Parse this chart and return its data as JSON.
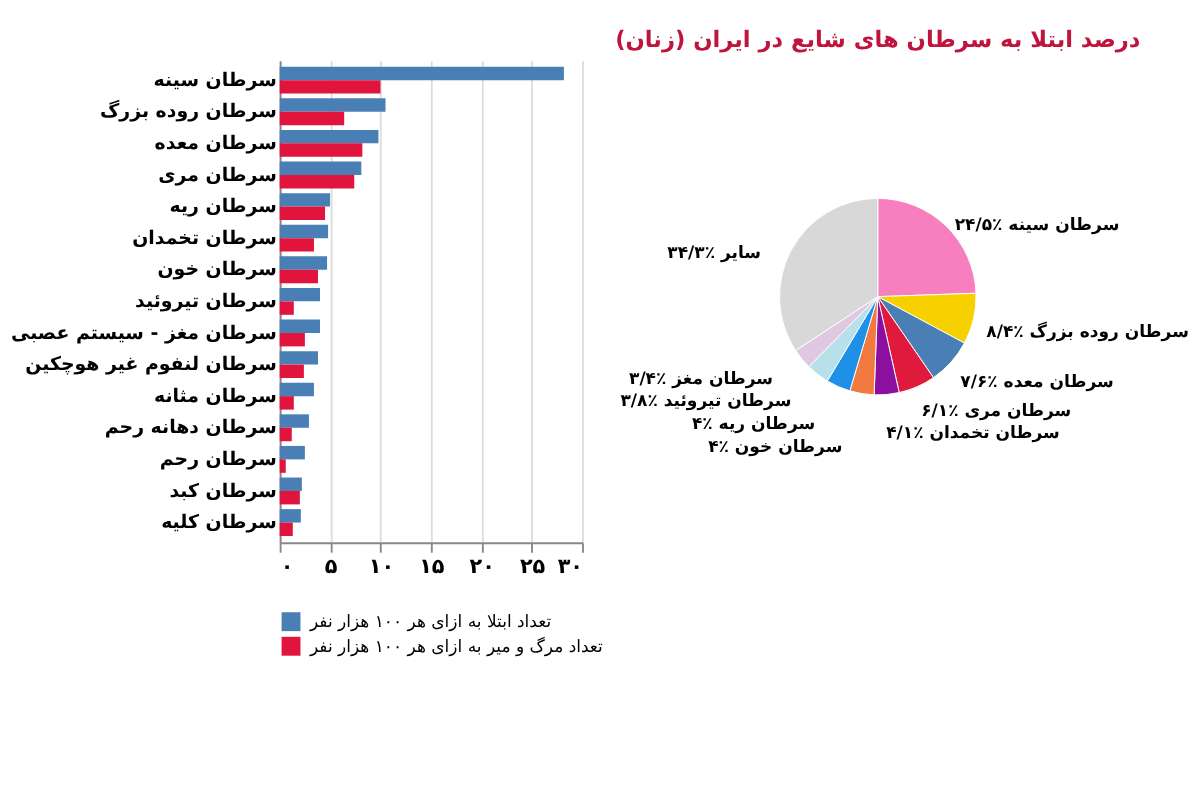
{
  "chart_data": [
    {
      "type": "bar",
      "orientation": "horizontal",
      "categories": [
        "سرطان سینه",
        "سرطان روده بزرگ",
        "سرطان معده",
        "سرطان مری",
        "سرطان ریه",
        "سرطان تخمدان",
        "سرطان خون",
        "سرطان تیروئید",
        "سرطان مغز - سیستم عصبی",
        "سرطان لنفوم غیر هوچکین",
        "سرطان مثانه",
        "سرطان دهانه رحم",
        "سرطان رحم",
        "سرطان کبد",
        "سرطان کلیه"
      ],
      "series": [
        {
          "name": "تعداد ابتلا به ازای هر ۱۰۰ هزار نفر",
          "color": "#4a7fb5",
          "values": [
            28.2,
            10.5,
            9.8,
            8.1,
            5.0,
            4.8,
            4.7,
            4.0,
            4.0,
            3.8,
            3.4,
            2.9,
            2.5,
            2.2,
            2.1
          ]
        },
        {
          "name": "تعداد مرگ و میر به ازای هر ۱۰۰ هزار نفر",
          "color": "#e0143c",
          "values": [
            10.0,
            6.4,
            8.2,
            7.4,
            4.5,
            3.4,
            3.8,
            1.4,
            2.5,
            2.4,
            1.4,
            1.2,
            0.6,
            2.0,
            1.3
          ]
        }
      ],
      "xlim": [
        0,
        30
      ],
      "xticks": [
        {
          "value": 0,
          "label": "۰"
        },
        {
          "value": 5,
          "label": "۵"
        },
        {
          "value": 10,
          "label": "۱۰"
        },
        {
          "value": 15,
          "label": "۱۵"
        },
        {
          "value": 20,
          "label": "۲۰"
        },
        {
          "value": 25,
          "label": "۲۵"
        },
        {
          "value": 30,
          "label": "۳۰"
        }
      ],
      "grid": "x",
      "legend": "bottom"
    },
    {
      "type": "pie",
      "title": "درصد ابتلا به سرطان های شایع در ایران (زنان)",
      "categories": [
        "سرطان سینه",
        "سرطان روده بزرگ",
        "سرطان معده",
        "سرطان مری",
        "سرطان تخمدان",
        "سرطان خون",
        "سرطان ریه",
        "سرطان تیروئید",
        "سرطان مغز",
        "سایر"
      ],
      "values": [
        24.5,
        8.4,
        7.6,
        6.1,
        4.1,
        4,
        4,
        3.8,
        3.4,
        34.3
      ],
      "value_labels": [
        "٪۲۴/۵",
        "٪۸/۴",
        "٪۷/۶",
        "٪۶/۱",
        "٪۴/۱",
        "٪۴",
        "٪۴",
        "٪۳/۸",
        "٪۳/۴",
        "٪۳۴/۳"
      ],
      "colors": [
        "#f77fc0",
        "#f7d000",
        "#4a7fb5",
        "#e01a3c",
        "#8b10a0",
        "#f07a40",
        "#1e90e8",
        "#b8e0ea",
        "#e0c8e0",
        "#d8d8d8"
      ]
    }
  ]
}
